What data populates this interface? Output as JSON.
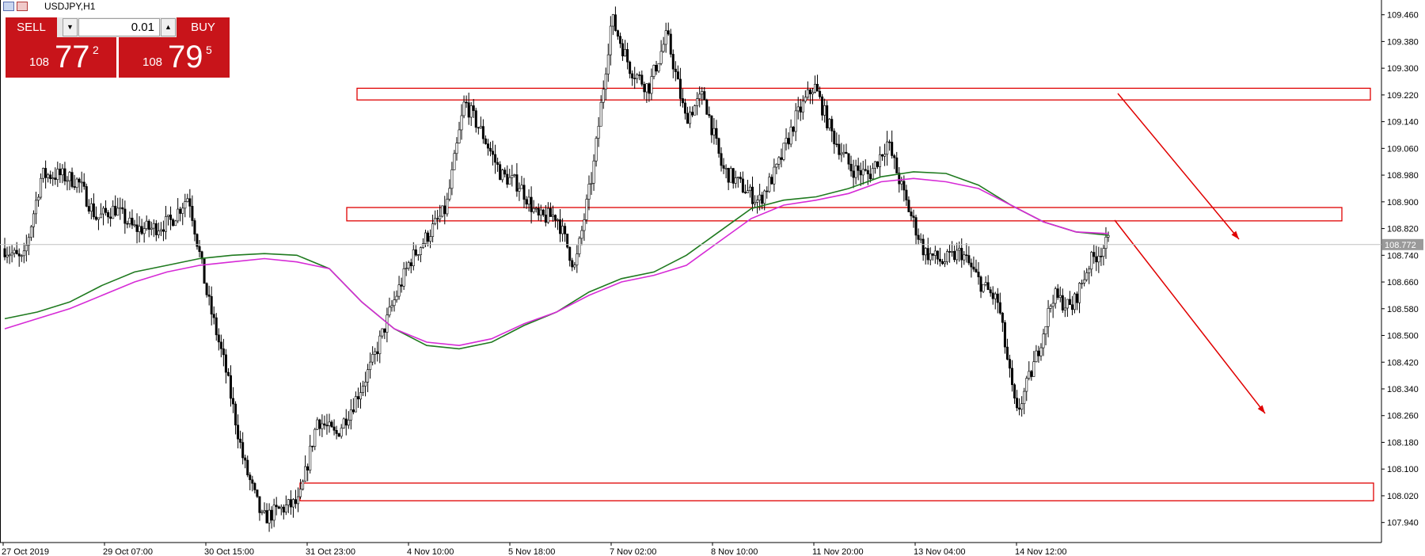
{
  "window": {
    "title": "USDJPY,H1",
    "icons": [
      "chart-window-icon",
      "terminal-icon"
    ]
  },
  "trade_panel": {
    "sell_label": "SELL",
    "buy_label": "BUY",
    "lot_value": "0.01",
    "down_arrow": "▼",
    "up_arrow": "▲",
    "sell_price": {
      "prefix": "108",
      "big": "77",
      "sup": "2"
    },
    "buy_price": {
      "prefix": "108",
      "big": "79",
      "sup": "5"
    },
    "panel_color": "#c8141a"
  },
  "chart_data": {
    "type": "line",
    "symbol": "USDJPY",
    "timeframe": "H1",
    "title": "",
    "xlabel": "",
    "ylabel": "",
    "y_ticks": [
      "109.460",
      "109.380",
      "109.300",
      "109.220",
      "109.140",
      "109.060",
      "108.980",
      "108.900",
      "108.820",
      "108.740",
      "108.660",
      "108.580",
      "108.500",
      "108.420",
      "108.340",
      "108.260",
      "108.180",
      "108.100",
      "108.020",
      "107.940"
    ],
    "x_ticks": [
      "27 Oct 2019",
      "29 Oct 07:00",
      "30 Oct 15:00",
      "31 Oct 23:00",
      "4 Nov 10:00",
      "5 Nov 18:00",
      "7 Nov 02:00",
      "8 Nov 10:00",
      "11 Nov 20:00",
      "13 Nov 04:00",
      "14 Nov 12:00"
    ],
    "ylim": [
      107.88,
      109.49
    ],
    "current_price_label": "108.772",
    "current_price": 108.772,
    "grid": false,
    "price_path": [
      108.76,
      108.72,
      108.98,
      108.98,
      108.96,
      108.85,
      108.88,
      108.82,
      108.82,
      108.84,
      108.92,
      108.62,
      108.4,
      108.12,
      107.95,
      107.98,
      108.0,
      108.25,
      108.2,
      108.3,
      108.42,
      108.58,
      108.72,
      108.8,
      108.88,
      109.2,
      109.1,
      108.98,
      108.95,
      108.85,
      108.86,
      108.7,
      109.0,
      109.45,
      109.3,
      109.24,
      109.4,
      109.15,
      109.22,
      109.0,
      108.95,
      108.9,
      109.0,
      109.15,
      109.25,
      109.1,
      109.0,
      108.98,
      109.08,
      108.9,
      108.75,
      108.72,
      108.75,
      108.66,
      108.6,
      108.26,
      108.42,
      108.62,
      108.58,
      108.72,
      108.78
    ],
    "series": [
      {
        "name": "",
        "color": "#1f7a1f",
        "values": [
          108.55,
          108.57,
          108.6,
          108.65,
          108.69,
          108.71,
          108.73,
          108.74,
          108.745,
          108.74,
          108.7,
          108.6,
          108.52,
          108.47,
          108.46,
          108.48,
          108.53,
          108.57,
          108.63,
          108.67,
          108.69,
          108.74,
          108.81,
          108.88,
          108.905,
          108.915,
          108.94,
          108.975,
          108.99,
          108.985,
          108.95,
          108.89,
          108.84,
          108.81,
          108.8
        ]
      },
      {
        "name": "",
        "color": "#d62ad6",
        "values": [
          108.52,
          108.55,
          108.58,
          108.62,
          108.66,
          108.69,
          108.71,
          108.72,
          108.73,
          108.72,
          108.7,
          108.6,
          108.52,
          108.48,
          108.47,
          108.49,
          108.535,
          108.57,
          108.62,
          108.66,
          108.68,
          108.71,
          108.78,
          108.85,
          108.89,
          108.905,
          108.925,
          108.96,
          108.97,
          108.96,
          108.94,
          108.89,
          108.84,
          108.81,
          108.805
        ]
      }
    ],
    "zones": [
      {
        "name": "resistance-zone-upper",
        "from": 109.205,
        "to": 109.24
      },
      {
        "name": "resistance-zone-middle",
        "from": 108.843,
        "to": 108.883
      },
      {
        "name": "support-zone-lower",
        "from": 108.005,
        "to": 108.058
      }
    ],
    "arrows": [
      "forecast-arrow-1",
      "forecast-arrow-2"
    ],
    "colors": {
      "bull": "#000000",
      "bear": "#000000",
      "zone": "#e00000",
      "arrow": "#e00000",
      "axis": "#000000",
      "price_line": "#c0c0c0"
    }
  }
}
